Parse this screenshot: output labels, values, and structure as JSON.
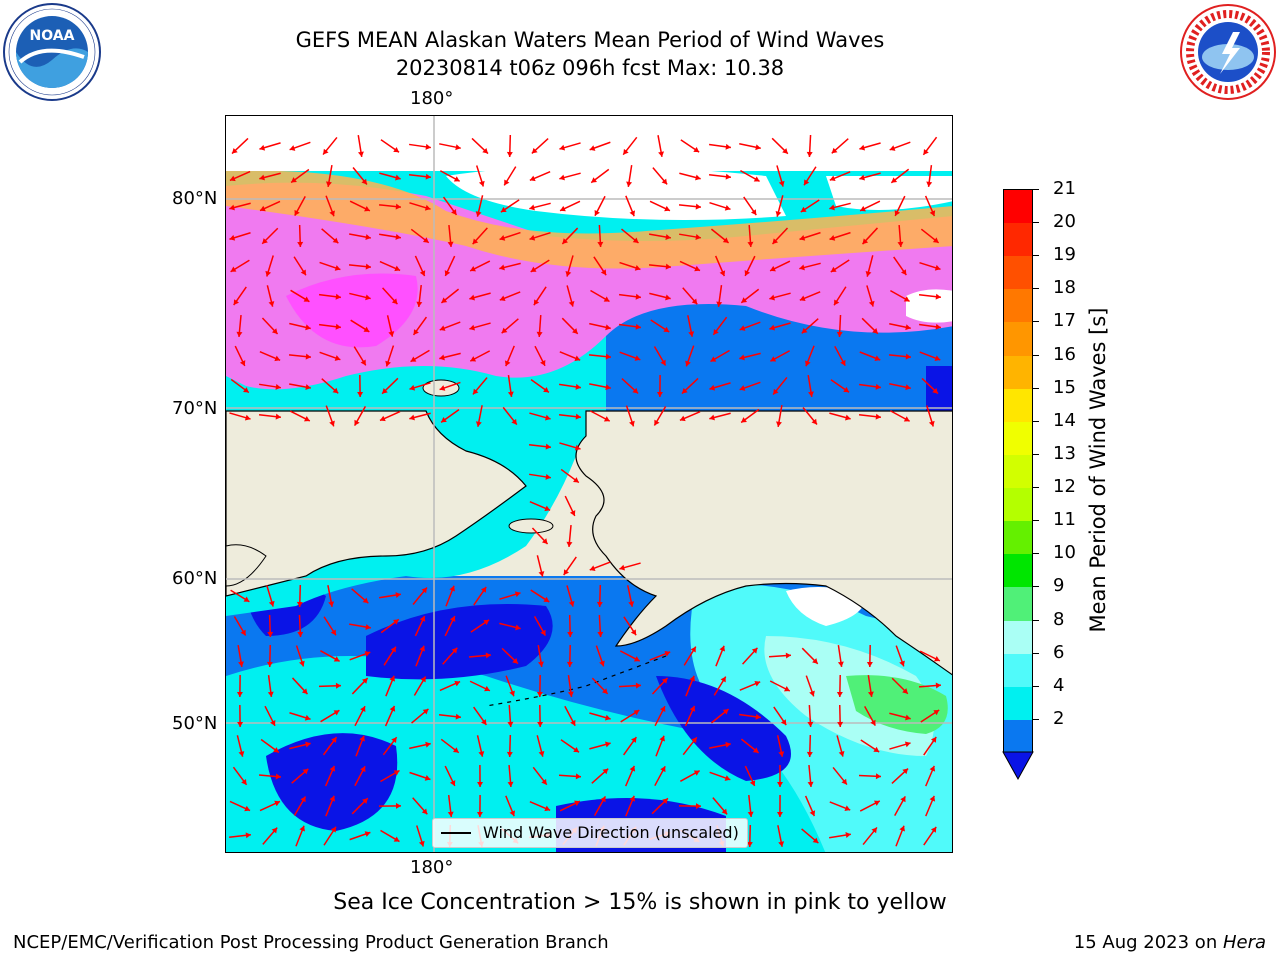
{
  "header": {
    "title_line1": "GEFS MEAN Alaskan Waters Mean Period of Wind Waves",
    "title_line2": "20230814 t06z 096h fcst   Max: 10.38"
  },
  "logos": {
    "noaa_text": "NOAA",
    "noaa_ring": "NATIONAL OCEANIC AND ATMOSPHERIC ADMINISTRATION · U.S. DEPARTMENT OF COMMERCE",
    "nws_ring": "NATIONAL WEATHER SERVICE"
  },
  "map": {
    "lon_label_top": "180°",
    "lon_label_bottom": "180°",
    "lat_labels": [
      "80°N",
      "70°N",
      "60°N",
      "50°N"
    ],
    "legend_label": "Wind Wave Direction (unscaled)",
    "colors": {
      "land": "#eeecdc",
      "ocean_deep_blue": "#0a14e6",
      "ocean_blue": "#0a78f0",
      "ocean_cyan": "#00f0f0",
      "ocean_light_cyan": "#50fafa",
      "ocean_pale_cyan": "#aafff5",
      "green_patch": "#50f078",
      "ice_pink": "#f07af0",
      "ice_magenta": "#ff50ff",
      "ice_orange": "#ffb450",
      "arrow": "#ff0000"
    }
  },
  "colorbar": {
    "label": "Mean Period of Wind Waves [s]",
    "ticks": [
      "21",
      "20",
      "19",
      "18",
      "17",
      "16",
      "15",
      "14",
      "13",
      "12",
      "11",
      "10",
      "9",
      "8",
      "6",
      "4",
      "2"
    ],
    "colors_top_to_bottom": [
      "#ff0000",
      "#ff2800",
      "#ff5000",
      "#ff7800",
      "#ff9600",
      "#ffb400",
      "#ffe600",
      "#f0ff00",
      "#d2ff00",
      "#b4ff00",
      "#64f000",
      "#00e600",
      "#50f078",
      "#aafff5",
      "#50fafa",
      "#00f0f0",
      "#0a78f0"
    ],
    "extend_color": "#0a14e6"
  },
  "footer": {
    "note": "Sea Ice Concentration > 15% is shown in pink to yellow",
    "left": "NCEP/EMC/Verification Post Processing Product Generation Branch",
    "right_date": "15 Aug 2023 on ",
    "right_host": "Hera"
  }
}
